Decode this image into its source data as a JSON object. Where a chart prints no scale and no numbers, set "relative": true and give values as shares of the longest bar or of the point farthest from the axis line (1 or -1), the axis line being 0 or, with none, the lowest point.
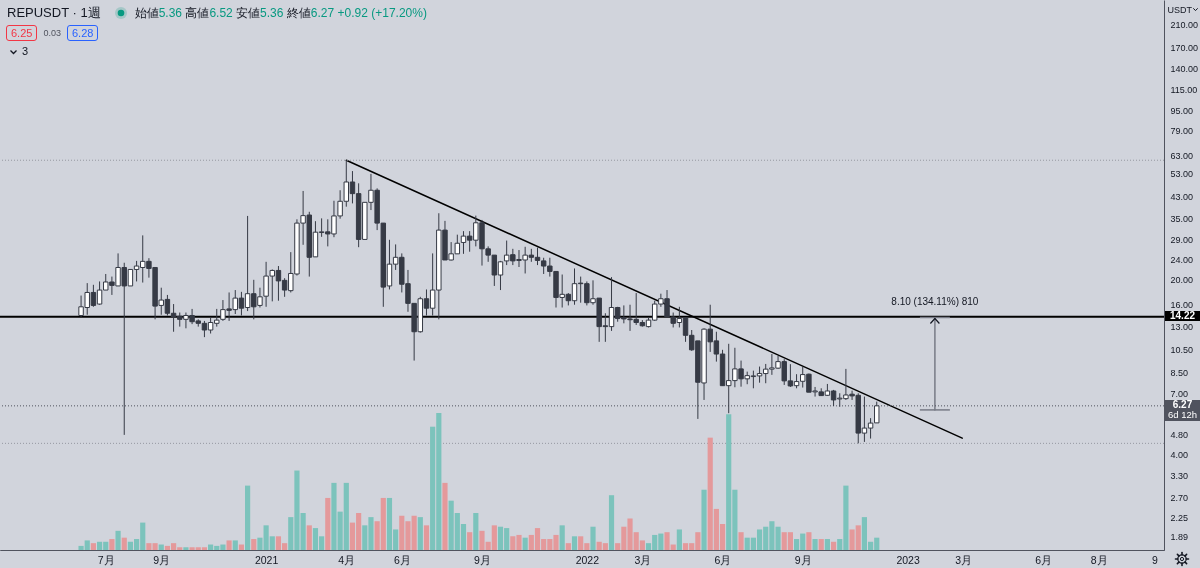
{
  "chart_data": [
    {
      "type": "candlestick",
      "title": "REPUSDT · 1週",
      "subtitle": "始値5.36 高値6.52 安値5.36 終値6.27 +0.92 (+17.20%)",
      "ylabel": "USDT",
      "x": [
        "2020-06-08",
        "2020-06-15",
        "2020-06-22",
        "2020-06-29",
        "2020-07-06",
        "2020-07-13",
        "2020-07-20",
        "2020-07-27",
        "2020-08-03",
        "2020-08-10",
        "2020-08-17",
        "2020-08-24",
        "2020-08-31",
        "2020-09-07",
        "2020-09-14",
        "2020-09-21",
        "2020-09-28",
        "2020-10-05",
        "2020-10-12",
        "2020-10-19",
        "2020-10-26",
        "2020-11-02",
        "2020-11-09",
        "2020-11-16",
        "2020-11-23",
        "2020-11-30",
        "2020-12-07",
        "2020-12-14",
        "2020-12-21",
        "2020-12-28",
        "2021-01-04",
        "2021-01-11",
        "2021-01-18",
        "2021-01-25",
        "2021-02-01",
        "2021-02-08",
        "2021-02-15",
        "2021-02-22",
        "2021-03-01",
        "2021-03-08",
        "2021-03-15",
        "2021-03-22",
        "2021-03-29",
        "2021-04-05",
        "2021-04-12",
        "2021-04-19",
        "2021-04-26",
        "2021-05-03",
        "2021-05-10",
        "2021-05-17",
        "2021-05-24",
        "2021-05-31",
        "2021-06-07",
        "2021-06-14",
        "2021-06-21",
        "2021-06-28",
        "2021-07-05",
        "2021-07-12",
        "2021-07-19",
        "2021-07-26",
        "2021-08-02",
        "2021-08-09",
        "2021-08-16",
        "2021-08-23",
        "2021-08-30",
        "2021-09-06",
        "2021-09-13",
        "2021-09-20",
        "2021-09-27",
        "2021-10-04",
        "2021-10-11",
        "2021-10-18",
        "2021-10-25",
        "2021-11-01",
        "2021-11-08",
        "2021-11-15",
        "2021-11-22",
        "2021-11-29",
        "2021-12-06",
        "2021-12-13",
        "2021-12-20",
        "2021-12-27",
        "2022-01-03",
        "2022-01-10",
        "2022-01-17",
        "2022-01-24",
        "2022-01-31",
        "2022-02-07",
        "2022-02-14",
        "2022-02-21",
        "2022-02-28",
        "2022-03-07",
        "2022-03-14",
        "2022-03-21",
        "2022-03-28",
        "2022-04-04",
        "2022-04-11",
        "2022-04-18",
        "2022-04-25",
        "2022-05-02",
        "2022-05-09",
        "2022-05-16",
        "2022-05-23",
        "2022-05-30",
        "2022-06-06",
        "2022-06-13",
        "2022-06-20",
        "2022-06-27",
        "2022-07-04",
        "2022-07-11",
        "2022-07-18",
        "2022-07-25",
        "2022-08-01",
        "2022-08-08",
        "2022-08-15",
        "2022-08-22",
        "2022-08-29",
        "2022-09-05",
        "2022-09-12",
        "2022-09-19",
        "2022-09-26",
        "2022-10-03",
        "2022-10-10",
        "2022-10-17",
        "2022-10-24",
        "2022-10-31",
        "2022-11-07",
        "2022-11-14",
        "2022-11-21",
        "2022-11-28"
      ],
      "ohlc": [
        [
          14.4,
          17.3,
          14.2,
          15.6
        ],
        [
          15.5,
          19.4,
          14.5,
          17.8
        ],
        [
          17.8,
          19.1,
          15.6,
          15.8
        ],
        [
          16.0,
          19.7,
          15.9,
          18.2
        ],
        [
          18.2,
          21.1,
          18.2,
          19.6
        ],
        [
          19.6,
          20.6,
          17.4,
          19.0
        ],
        [
          18.9,
          25.5,
          18.9,
          22.4
        ],
        [
          22.4,
          23.4,
          4.8,
          18.9
        ],
        [
          18.9,
          22.0,
          18.9,
          22.0
        ],
        [
          22.0,
          23.8,
          19.7,
          22.7
        ],
        [
          22.4,
          30.1,
          19.5,
          23.7
        ],
        [
          23.7,
          24.4,
          20.4,
          22.2
        ],
        [
          22.4,
          22.4,
          13.9,
          15.7
        ],
        [
          15.8,
          18.6,
          14.5,
          16.6
        ],
        [
          16.7,
          17.4,
          14.4,
          14.7
        ],
        [
          14.7,
          16.0,
          12.4,
          14.2
        ],
        [
          14.3,
          14.8,
          13.0,
          13.9
        ],
        [
          13.9,
          14.8,
          12.8,
          14.4
        ],
        [
          14.4,
          15.3,
          13.3,
          13.6
        ],
        [
          13.7,
          13.9,
          13.0,
          13.4
        ],
        [
          13.4,
          13.7,
          11.8,
          12.6
        ],
        [
          12.6,
          14.1,
          12.2,
          13.5
        ],
        [
          13.4,
          15.3,
          13.0,
          13.8
        ],
        [
          13.9,
          16.6,
          13.7,
          15.2
        ],
        [
          15.3,
          17.8,
          13.7,
          15.1
        ],
        [
          15.2,
          18.2,
          14.6,
          16.9
        ],
        [
          16.9,
          17.9,
          14.4,
          15.4
        ],
        [
          15.5,
          36.0,
          15.0,
          17.6
        ],
        [
          17.6,
          20.0,
          13.9,
          15.6
        ],
        [
          15.8,
          18.6,
          15.5,
          17.1
        ],
        [
          17.2,
          23.6,
          15.6,
          20.7
        ],
        [
          20.7,
          22.0,
          16.4,
          21.8
        ],
        [
          21.8,
          22.7,
          16.5,
          19.8
        ],
        [
          19.9,
          20.3,
          17.1,
          18.2
        ],
        [
          18.1,
          25.8,
          17.8,
          21.2
        ],
        [
          21.1,
          34.9,
          20.8,
          33.7
        ],
        [
          33.7,
          45.3,
          27.6,
          36.1
        ],
        [
          36.3,
          37.4,
          20.6,
          24.6
        ],
        [
          24.7,
          34.3,
          24.7,
          31.0
        ],
        [
          30.9,
          35.2,
          29.7,
          31.1
        ],
        [
          31.1,
          34.9,
          27.2,
          30.5
        ],
        [
          30.5,
          41.4,
          29.6,
          36.0
        ],
        [
          36.0,
          45.6,
          35.1,
          41.2
        ],
        [
          41.2,
          60.1,
          39.2,
          49.2
        ],
        [
          49.2,
          54.4,
          40.4,
          44.2
        ],
        [
          44.2,
          48.6,
          27.0,
          29.0
        ],
        [
          29.0,
          40.8,
          29.0,
          40.8
        ],
        [
          40.8,
          53.0,
          38.0,
          45.6
        ],
        [
          45.6,
          46.4,
          31.6,
          33.7
        ],
        [
          33.7,
          33.7,
          15.6,
          18.7
        ],
        [
          18.9,
          28.9,
          18.3,
          23.1
        ],
        [
          23.1,
          27.7,
          21.9,
          24.6
        ],
        [
          24.6,
          25.5,
          17.8,
          19.2
        ],
        [
          19.3,
          21.9,
          14.9,
          16.1
        ],
        [
          16.1,
          16.1,
          9.51,
          12.4
        ],
        [
          12.4,
          17.1,
          12.3,
          16.8
        ],
        [
          16.8,
          18.3,
          14.4,
          15.4
        ],
        [
          15.4,
          25.5,
          14.4,
          18.2
        ],
        [
          18.2,
          36.9,
          13.9,
          31.6
        ],
        [
          31.6,
          34.4,
          24.0,
          24.0
        ],
        [
          24.0,
          28.3,
          23.9,
          25.4
        ],
        [
          25.4,
          30.3,
          25.4,
          28.0
        ],
        [
          28.2,
          31.3,
          25.4,
          29.9
        ],
        [
          29.9,
          31.3,
          25.9,
          28.8
        ],
        [
          28.8,
          36.1,
          27.2,
          33.8
        ],
        [
          33.8,
          34.7,
          22.8,
          26.6
        ],
        [
          26.6,
          27.2,
          23.6,
          25.1
        ],
        [
          25.1,
          25.1,
          18.9,
          20.9
        ],
        [
          20.9,
          23.8,
          18.2,
          23.6
        ],
        [
          23.8,
          28.7,
          22.9,
          25.1
        ],
        [
          25.2,
          26.6,
          22.9,
          23.8
        ],
        [
          24.1,
          26.3,
          22.5,
          23.9
        ],
        [
          24.0,
          27.1,
          21.2,
          25.1
        ],
        [
          25.1,
          26.6,
          23.6,
          24.6
        ],
        [
          24.6,
          26.9,
          22.9,
          23.9
        ],
        [
          23.8,
          24.5,
          21.1,
          22.7
        ],
        [
          22.7,
          24.5,
          20.6,
          21.6
        ],
        [
          21.6,
          21.6,
          15.5,
          17.0
        ],
        [
          17.0,
          21.0,
          15.5,
          17.5
        ],
        [
          17.5,
          17.7,
          15.8,
          16.5
        ],
        [
          16.5,
          22.2,
          15.9,
          19.3
        ],
        [
          19.4,
          20.6,
          16.2,
          19.3
        ],
        [
          19.3,
          19.7,
          15.8,
          16.2
        ],
        [
          16.2,
          19.9,
          15.9,
          16.8
        ],
        [
          16.9,
          16.9,
          11.3,
          13.0
        ],
        [
          13.1,
          14.7,
          11.3,
          13.0
        ],
        [
          13.0,
          20.5,
          12.5,
          15.5
        ],
        [
          15.5,
          15.6,
          13.6,
          14.0
        ],
        [
          14.1,
          15.8,
          13.4,
          13.95
        ],
        [
          13.95,
          15.9,
          12.5,
          13.85
        ],
        [
          13.9,
          17.7,
          13.2,
          13.5
        ],
        [
          13.5,
          13.8,
          13.0,
          13.1
        ],
        [
          13.0,
          14.2,
          12.9,
          13.8
        ],
        [
          13.8,
          16.5,
          13.7,
          16.0
        ],
        [
          16.0,
          17.6,
          15.6,
          16.8
        ],
        [
          16.8,
          18.2,
          14.2,
          14.2
        ],
        [
          14.2,
          14.8,
          12.9,
          13.4
        ],
        [
          13.5,
          15.6,
          12.9,
          14.0
        ],
        [
          14.1,
          14.2,
          11.3,
          12.0
        ],
        [
          12.0,
          12.6,
          10.4,
          10.5
        ],
        [
          11.4,
          11.4,
          5.56,
          7.79
        ],
        [
          7.74,
          12.8,
          6.62,
          12.7
        ],
        [
          12.7,
          15.9,
          10.3,
          11.3
        ],
        [
          11.4,
          12.4,
          9.42,
          10.1
        ],
        [
          10.1,
          10.5,
          7.55,
          7.55
        ],
        [
          7.55,
          11.1,
          5.86,
          7.91
        ],
        [
          7.91,
          10.7,
          7.44,
          8.81
        ],
        [
          8.81,
          9.51,
          7.48,
          8.04
        ],
        [
          8.04,
          8.59,
          7.65,
          8.28
        ],
        [
          8.21,
          8.67,
          7.37,
          8.26
        ],
        [
          8.26,
          9.0,
          7.76,
          8.44
        ],
        [
          8.44,
          9.22,
          7.72,
          8.79
        ],
        [
          8.79,
          10.1,
          8.34,
          8.89
        ],
        [
          8.87,
          9.93,
          8.81,
          9.42
        ],
        [
          9.42,
          9.63,
          7.6,
          7.89
        ],
        [
          7.89,
          9.2,
          7.46,
          7.53
        ],
        [
          7.55,
          8.39,
          7.37,
          7.84
        ],
        [
          7.86,
          8.97,
          7.42,
          8.36
        ],
        [
          8.39,
          8.44,
          7.11,
          7.11
        ],
        [
          7.13,
          7.46,
          6.83,
          7.19
        ],
        [
          7.13,
          7.37,
          6.87,
          6.89
        ],
        [
          6.91,
          7.67,
          6.87,
          7.19
        ],
        [
          7.19,
          7.26,
          6.26,
          6.62
        ],
        [
          6.68,
          7.04,
          6.22,
          6.73
        ],
        [
          6.7,
          8.81,
          6.62,
          6.93
        ],
        [
          6.98,
          7.21,
          6.62,
          6.87
        ],
        [
          6.91,
          7.04,
          4.44,
          4.88
        ],
        [
          4.88,
          6.83,
          4.5,
          5.11
        ],
        [
          5.11,
          5.6,
          4.64,
          5.35
        ],
        [
          5.36,
          6.52,
          5.36,
          6.27
        ]
      ],
      "colors": [
        "#ffffff",
        "#ffffff",
        "#363a45",
        "#ffffff",
        "#ffffff",
        "#363a45",
        "#ffffff",
        "#363a45",
        "#ffffff",
        "#ffffff",
        "#ffffff",
        "#363a45",
        "#363a45",
        "#ffffff",
        "#363a45",
        "#363a45",
        "#363a45",
        "#ffffff",
        "#363a45",
        "#363a45",
        "#363a45",
        "#ffffff",
        "#ffffff",
        "#ffffff",
        "#363a45",
        "#ffffff",
        "#363a45",
        "#ffffff",
        "#363a45",
        "#ffffff",
        "#ffffff",
        "#ffffff",
        "#363a45",
        "#363a45",
        "#ffffff",
        "#ffffff",
        "#ffffff",
        "#363a45",
        "#ffffff",
        "#ffffff",
        "#363a45",
        "#ffffff",
        "#ffffff",
        "#ffffff",
        "#363a45",
        "#363a45",
        "#ffffff",
        "#ffffff",
        "#363a45",
        "#363a45",
        "#ffffff",
        "#ffffff",
        "#363a45",
        "#363a45",
        "#363a45",
        "#ffffff",
        "#363a45",
        "#ffffff",
        "#ffffff",
        "#363a45",
        "#ffffff",
        "#ffffff",
        "#ffffff",
        "#363a45",
        "#ffffff",
        "#363a45",
        "#363a45",
        "#363a45",
        "#ffffff",
        "#ffffff",
        "#363a45",
        "#363a45",
        "#ffffff",
        "#363a45",
        "#363a45",
        "#363a45",
        "#363a45",
        "#363a45",
        "#ffffff",
        "#363a45",
        "#ffffff",
        "#363a45",
        "#363a45",
        "#ffffff",
        "#363a45",
        "#363a45",
        "#ffffff",
        "#363a45",
        "#363a45",
        "#363a45",
        "#363a45",
        "#363a45",
        "#ffffff",
        "#ffffff",
        "#ffffff",
        "#363a45",
        "#363a45",
        "#ffffff",
        "#363a45",
        "#363a45",
        "#363a45",
        "#ffffff",
        "#363a45",
        "#363a45",
        "#363a45",
        "#ffffff",
        "#ffffff",
        "#363a45",
        "#ffffff",
        "#ffffff",
        "#ffffff",
        "#ffffff",
        "#ffffff",
        "#ffffff",
        "#363a45",
        "#363a45",
        "#ffffff",
        "#ffffff",
        "#363a45",
        "#ffffff",
        "#363a45",
        "#ffffff",
        "#363a45",
        "#ffffff",
        "#ffffff",
        "#363a45",
        "#363a45",
        "#ffffff",
        "#ffffff",
        "#ffffff"
      ],
      "color": "#363a45",
      "series": [
        {
          "type": "line",
          "x": [
            "2021-04-05",
            "2023-03-05"
          ],
          "values": [
            60.1,
            4.66
          ],
          "color": "#000000"
        },
        {
          "type": "line",
          "x": [
            "2023-02-02",
            "2023-02-02"
          ],
          "values": [
            6.04,
            14.14
          ],
          "color": "#787b86"
        }
      ],
      "ref_lines": [
        {
          "axis": "y",
          "value": 14.22,
          "label": "14.22",
          "color": "#000000"
        },
        {
          "axis": "y",
          "value": 6.27,
          "label": "6.27",
          "color": "#50535e",
          "line_style": "dotted"
        },
        {
          "axis": "y",
          "value": 60.1,
          "color": "#9598a1",
          "line_style": "dotted"
        },
        {
          "axis": "y",
          "value": 4.44,
          "color": "#9598a1",
          "line_style": "dotted"
        }
      ],
      "annotations": [
        "6.25",
        "0.03",
        "6.28",
        "3",
        "6d 12h",
        {
          "text": "8.10 (134.11%) 810",
          "x": "2023-02-02",
          "y": 14.14
        }
      ],
      "xlim": [
        "2020-03-08",
        "2023-10-20"
      ],
      "xticks": [
        {
          "value": "2020-07-06",
          "label": "7月"
        },
        {
          "value": "2020-09-07",
          "label": "9月"
        },
        {
          "value": "2021-01-04",
          "label": "2021"
        },
        {
          "value": "2021-04-05",
          "label": "4月"
        },
        {
          "value": "2021-06-07",
          "label": "6月"
        },
        {
          "value": "2021-09-06",
          "label": "9月"
        },
        {
          "value": "2022-01-03",
          "label": "2022"
        },
        {
          "value": "2022-03-07",
          "label": "3月"
        },
        {
          "value": "2022-06-06",
          "label": "6月"
        },
        {
          "value": "2022-09-05",
          "label": "9月"
        },
        {
          "value": "2023-01-02",
          "label": "2023"
        },
        {
          "value": "2023-03-06",
          "label": "3月"
        },
        {
          "value": "2023-06-05",
          "label": "6月"
        },
        {
          "value": "2023-08-07",
          "label": "8月"
        },
        {
          "value": "2023-10-09",
          "label": "9"
        }
      ],
      "ylim": [
        1.664,
        262.6
      ],
      "yticks": [
        {
          "value": 210,
          "label": "210.00"
        },
        {
          "value": 170,
          "label": "170.00"
        },
        {
          "value": 140,
          "label": "140.00"
        },
        {
          "value": 115,
          "label": "115.00"
        },
        {
          "value": 95,
          "label": "95.00"
        },
        {
          "value": 79,
          "label": "79.00"
        },
        {
          "value": 63,
          "label": "63.00"
        },
        {
          "value": 53,
          "label": "53.00"
        },
        {
          "value": 43,
          "label": "43.00"
        },
        {
          "value": 35,
          "label": "35.00"
        },
        {
          "value": 29,
          "label": "29.00"
        },
        {
          "value": 24,
          "label": "24.00"
        },
        {
          "value": 20,
          "label": "20.00"
        },
        {
          "value": 16,
          "label": "16.00"
        },
        {
          "value": 13,
          "label": "13.00"
        },
        {
          "value": 10.5,
          "label": "10.50"
        },
        {
          "value": 8.5,
          "label": "8.50"
        },
        {
          "value": 7,
          "label": "7.00"
        },
        {
          "value": 4.8,
          "label": "4.80"
        },
        {
          "value": 4,
          "label": "4.00"
        },
        {
          "value": 3.3,
          "label": "3.30"
        },
        {
          "value": 2.7,
          "label": "2.70"
        },
        {
          "value": 2.25,
          "label": "2.25"
        },
        {
          "value": 1.89,
          "label": "1.89"
        }
      ],
      "log": true
    },
    {
      "type": "bar",
      "x": [
        "2020-06-08",
        "2020-06-15",
        "2020-06-22",
        "2020-06-29",
        "2020-07-06",
        "2020-07-13",
        "2020-07-20",
        "2020-07-27",
        "2020-08-03",
        "2020-08-10",
        "2020-08-17",
        "2020-08-24",
        "2020-08-31",
        "2020-09-07",
        "2020-09-14",
        "2020-09-21",
        "2020-09-28",
        "2020-10-05",
        "2020-10-12",
        "2020-10-19",
        "2020-10-26",
        "2020-11-02",
        "2020-11-09",
        "2020-11-16",
        "2020-11-23",
        "2020-11-30",
        "2020-12-07",
        "2020-12-14",
        "2020-12-21",
        "2020-12-28",
        "2021-01-04",
        "2021-01-11",
        "2021-01-18",
        "2021-01-25",
        "2021-02-01",
        "2021-02-08",
        "2021-02-15",
        "2021-02-22",
        "2021-03-01",
        "2021-03-08",
        "2021-03-15",
        "2021-03-22",
        "2021-03-29",
        "2021-04-05",
        "2021-04-12",
        "2021-04-19",
        "2021-04-26",
        "2021-05-03",
        "2021-05-10",
        "2021-05-17",
        "2021-05-24",
        "2021-05-31",
        "2021-06-07",
        "2021-06-14",
        "2021-06-21",
        "2021-06-28",
        "2021-07-05",
        "2021-07-12",
        "2021-07-19",
        "2021-07-26",
        "2021-08-02",
        "2021-08-09",
        "2021-08-16",
        "2021-08-23",
        "2021-08-30",
        "2021-09-06",
        "2021-09-13",
        "2021-09-20",
        "2021-09-27",
        "2021-10-04",
        "2021-10-11",
        "2021-10-18",
        "2021-10-25",
        "2021-11-01",
        "2021-11-08",
        "2021-11-15",
        "2021-11-22",
        "2021-11-29",
        "2021-12-06",
        "2021-12-13",
        "2021-12-20",
        "2021-12-27",
        "2022-01-03",
        "2022-01-10",
        "2022-01-17",
        "2022-01-24",
        "2022-01-31",
        "2022-02-07",
        "2022-02-14",
        "2022-02-21",
        "2022-02-28",
        "2022-03-07",
        "2022-03-14",
        "2022-03-21",
        "2022-03-28",
        "2022-04-04",
        "2022-04-11",
        "2022-04-18",
        "2022-04-25",
        "2022-05-02",
        "2022-05-09",
        "2022-05-16",
        "2022-05-23",
        "2022-05-30",
        "2022-06-06",
        "2022-06-13",
        "2022-06-20",
        "2022-06-27",
        "2022-07-04",
        "2022-07-11",
        "2022-07-18",
        "2022-07-25",
        "2022-08-01",
        "2022-08-08",
        "2022-08-15",
        "2022-08-22",
        "2022-08-29",
        "2022-09-05",
        "2022-09-12",
        "2022-09-19",
        "2022-09-26",
        "2022-10-03",
        "2022-10-10",
        "2022-10-17",
        "2022-10-24",
        "2022-10-31",
        "2022-11-07",
        "2022-11-14",
        "2022-11-21",
        "2022-11-28"
      ],
      "values": [
        0.03,
        0.07,
        0.05,
        0.06,
        0.06,
        0.08,
        0.14,
        0.09,
        0.06,
        0.08,
        0.2,
        0.05,
        0.05,
        0.04,
        0.03,
        0.05,
        0.02,
        0.02,
        0.02,
        0.02,
        0.02,
        0.04,
        0.03,
        0.04,
        0.07,
        0.07,
        0.04,
        0.47,
        0.08,
        0.09,
        0.18,
        0.1,
        0.1,
        0.05,
        0.24,
        0.58,
        0.27,
        0.18,
        0.16,
        0.1,
        0.38,
        0.49,
        0.28,
        0.49,
        0.2,
        0.27,
        0.18,
        0.24,
        0.21,
        0.38,
        0.38,
        0.15,
        0.25,
        0.21,
        0.25,
        0.24,
        0.18,
        0.9,
        1,
        0.49,
        0.36,
        0.27,
        0.19,
        0.13,
        0.27,
        0.14,
        0.06,
        0.18,
        0.17,
        0.16,
        0.1,
        0.11,
        0.09,
        0.11,
        0.16,
        0.08,
        0.08,
        0.11,
        0.18,
        0.05,
        0.1,
        0.1,
        0.05,
        0.17,
        0.06,
        0.05,
        0.4,
        0.05,
        0.17,
        0.23,
        0.13,
        0.07,
        0.05,
        0.11,
        0.12,
        0.13,
        0.04,
        0.15,
        0.05,
        0.05,
        0.13,
        0.44,
        0.82,
        0.3,
        0.19,
        0.99,
        0.44,
        0.13,
        0.09,
        0.09,
        0.15,
        0.17,
        0.21,
        0.17,
        0.13,
        0.13,
        0.08,
        0.12,
        0.13,
        0.08,
        0.08,
        0.08,
        0.06,
        0.08,
        0.47,
        0.15,
        0.18,
        0.24,
        0.06,
        0.09
      ],
      "colors": [
        "#7cc3bc",
        "#7cc3bc",
        "#e4999b",
        "#7cc3bc",
        "#7cc3bc",
        "#e4999b",
        "#7cc3bc",
        "#e4999b",
        "#7cc3bc",
        "#7cc3bc",
        "#7cc3bc",
        "#e4999b",
        "#e4999b",
        "#7cc3bc",
        "#e4999b",
        "#e4999b",
        "#e4999b",
        "#7cc3bc",
        "#e4999b",
        "#e4999b",
        "#e4999b",
        "#7cc3bc",
        "#7cc3bc",
        "#7cc3bc",
        "#e4999b",
        "#7cc3bc",
        "#e4999b",
        "#7cc3bc",
        "#e4999b",
        "#7cc3bc",
        "#7cc3bc",
        "#7cc3bc",
        "#e4999b",
        "#e4999b",
        "#7cc3bc",
        "#7cc3bc",
        "#7cc3bc",
        "#e4999b",
        "#7cc3bc",
        "#7cc3bc",
        "#e4999b",
        "#7cc3bc",
        "#7cc3bc",
        "#7cc3bc",
        "#e4999b",
        "#e4999b",
        "#7cc3bc",
        "#7cc3bc",
        "#e4999b",
        "#e4999b",
        "#7cc3bc",
        "#7cc3bc",
        "#e4999b",
        "#e4999b",
        "#e4999b",
        "#7cc3bc",
        "#e4999b",
        "#7cc3bc",
        "#7cc3bc",
        "#e4999b",
        "#7cc3bc",
        "#7cc3bc",
        "#7cc3bc",
        "#e4999b",
        "#7cc3bc",
        "#e4999b",
        "#e4999b",
        "#e4999b",
        "#7cc3bc",
        "#7cc3bc",
        "#e4999b",
        "#e4999b",
        "#7cc3bc",
        "#e4999b",
        "#e4999b",
        "#e4999b",
        "#e4999b",
        "#e4999b",
        "#7cc3bc",
        "#e4999b",
        "#7cc3bc",
        "#e4999b",
        "#e4999b",
        "#7cc3bc",
        "#e4999b",
        "#e4999b",
        "#7cc3bc",
        "#e4999b",
        "#e4999b",
        "#e4999b",
        "#e4999b",
        "#e4999b",
        "#7cc3bc",
        "#7cc3bc",
        "#7cc3bc",
        "#e4999b",
        "#e4999b",
        "#7cc3bc",
        "#e4999b",
        "#e4999b",
        "#e4999b",
        "#7cc3bc",
        "#e4999b",
        "#e4999b",
        "#e4999b",
        "#7cc3bc",
        "#7cc3bc",
        "#e4999b",
        "#7cc3bc",
        "#7cc3bc",
        "#7cc3bc",
        "#7cc3bc",
        "#7cc3bc",
        "#7cc3bc",
        "#e4999b",
        "#e4999b",
        "#7cc3bc",
        "#7cc3bc",
        "#e4999b",
        "#7cc3bc",
        "#e4999b",
        "#7cc3bc",
        "#e4999b",
        "#7cc3bc",
        "#7cc3bc",
        "#e4999b",
        "#e4999b",
        "#7cc3bc",
        "#7cc3bc",
        "#7cc3bc"
      ],
      "xlim": [
        "2020-03-08",
        "2023-10-20"
      ],
      "relative": true,
      "tick_labels": false
    }
  ]
}
